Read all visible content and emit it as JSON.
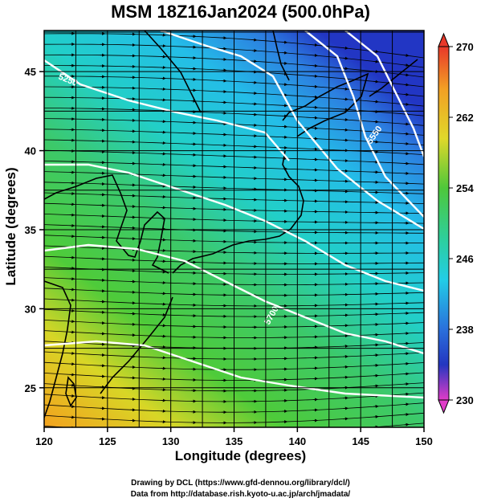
{
  "title": "MSM 18Z16Jan2024 (500.0hPa)",
  "axes": {
    "xlabel": "Longitude (degrees)",
    "ylabel": "Latitude  (degrees)",
    "xticks": [
      "120",
      "125",
      "130",
      "135",
      "140",
      "145",
      "150"
    ],
    "yticks": [
      "25",
      "30",
      "35",
      "40",
      "45"
    ],
    "xlim": [
      120,
      150
    ],
    "ylim": [
      22.5,
      47.6
    ]
  },
  "colorbar": {
    "ticks": [
      "270",
      "262",
      "254",
      "246",
      "238",
      "230"
    ],
    "range": [
      230,
      270
    ]
  },
  "contours": {
    "labels": [
      "5250",
      "5550",
      "5700"
    ]
  },
  "credits": {
    "line1": "Drawing by DCL (https://www.gfd-dennou.org/library/dcl/)",
    "line2": "Data from http://database.rish.kyoto-u.ac.jp/arch/jmadata/"
  },
  "colors": {
    "warm": "#f5a623",
    "green": "#3cc43c",
    "cyan": "#1ec8e6",
    "blue": "#1e3cc8",
    "red": "#e83c2c",
    "magenta": "#e63cc8"
  }
}
